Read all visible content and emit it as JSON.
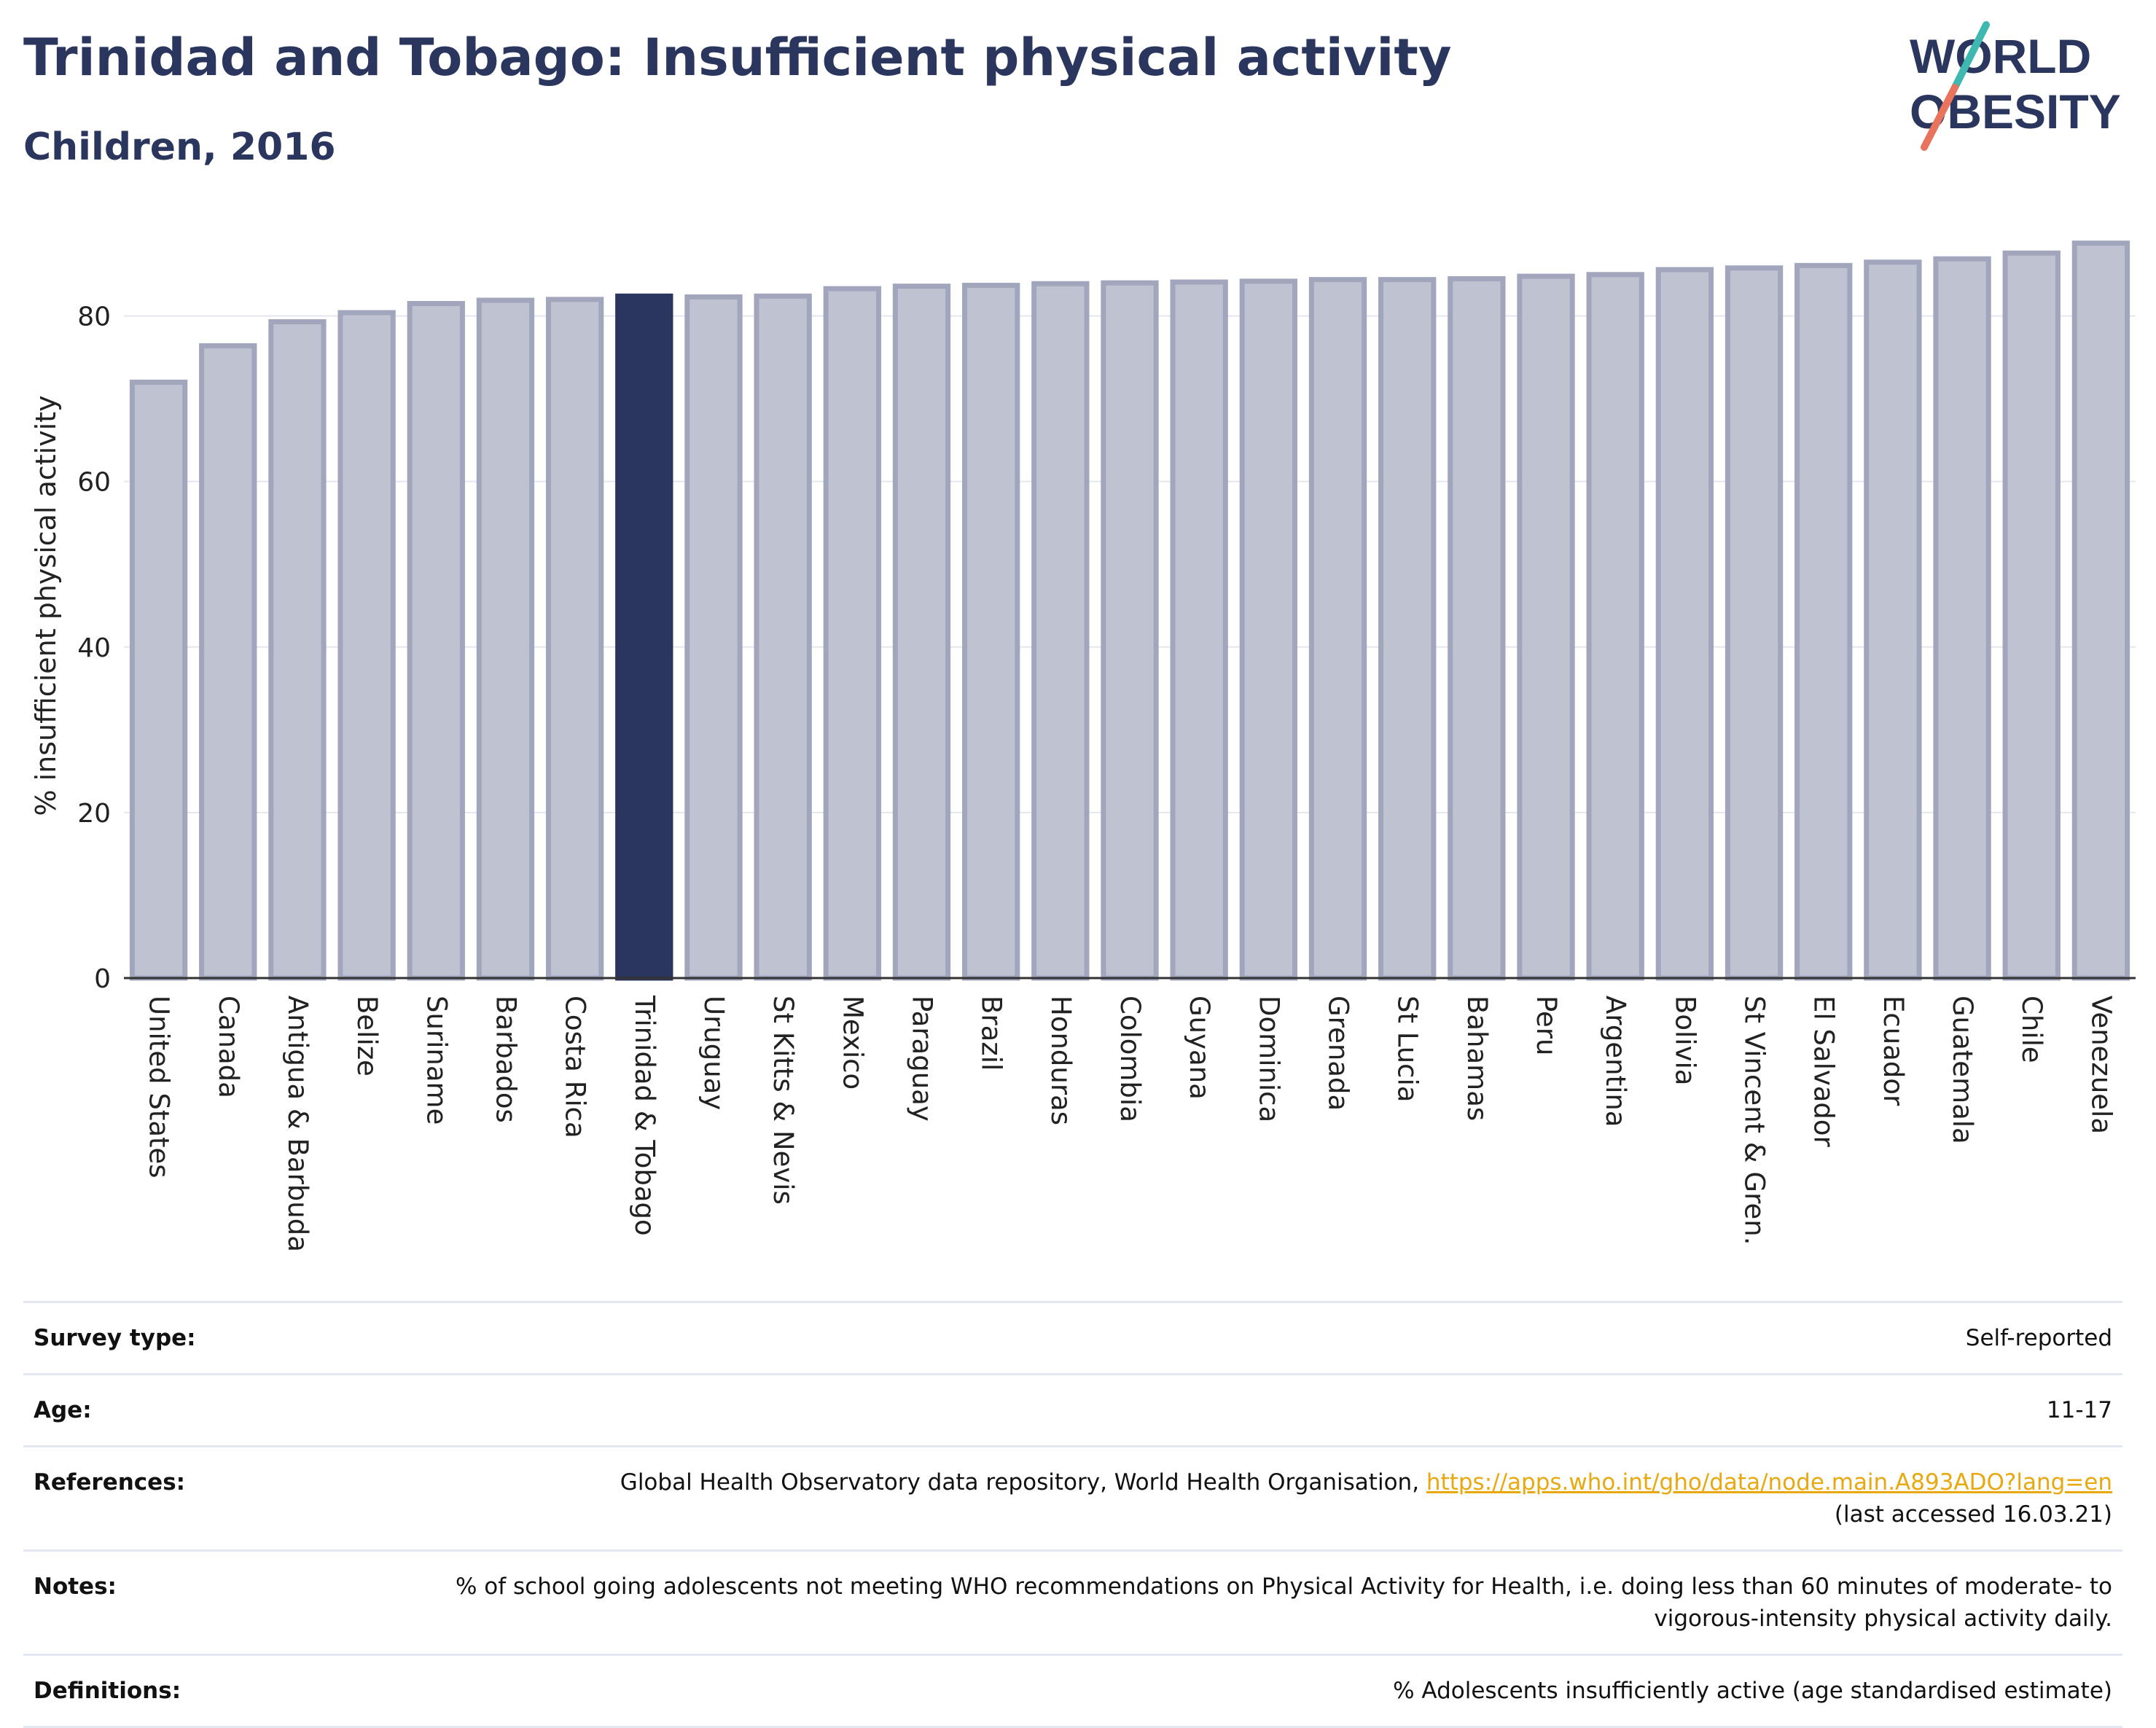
{
  "header": {
    "title": "Trinidad and Tobago: Insufficient physical activity",
    "subtitle": "Children, 2016"
  },
  "logo": {
    "line1": "WORLD",
    "line2": "OBESITY",
    "colors": {
      "text": "#2b365e",
      "slash_top": "#3fb8b0",
      "slash_bottom": "#e8745e"
    }
  },
  "colors": {
    "bar_fill": "#bfc2d0",
    "bar_stroke": "#a1a6bd",
    "highlight": "#2b365e",
    "axis": "#333333",
    "grid": "#e6e6ee"
  },
  "chart_data": {
    "type": "bar",
    "ylabel": "% insufficient physical activity",
    "xlabel": "",
    "ylim": [
      0,
      90
    ],
    "yticks": [
      0,
      20,
      40,
      60,
      80
    ],
    "grid": true,
    "highlight": "Trinidad & Tobago",
    "categories": [
      "United States",
      "Canada",
      "Antigua & Barbuda",
      "Belize",
      "Suriname",
      "Barbados",
      "Costa Rica",
      "Trinidad & Tobago",
      "Uruguay",
      "St Kitts & Nevis",
      "Mexico",
      "Paraguay",
      "Brazil",
      "Honduras",
      "Colombia",
      "Guyana",
      "Dominica",
      "Grenada",
      "St Lucia",
      "Bahamas",
      "Peru",
      "Argentina",
      "Bolivia",
      "St Vincent & Gren.",
      "El Salvador",
      "Ecuador",
      "Guatemala",
      "Chile",
      "Venezuela"
    ],
    "values": [
      72.0,
      76.4,
      79.3,
      80.4,
      81.5,
      81.9,
      82.0,
      82.4,
      82.3,
      82.4,
      83.3,
      83.6,
      83.7,
      83.9,
      84.0,
      84.1,
      84.2,
      84.4,
      84.4,
      84.5,
      84.8,
      85.0,
      85.6,
      85.8,
      86.1,
      86.5,
      86.9,
      87.6,
      88.8
    ]
  },
  "meta": [
    {
      "label": "Survey type:",
      "value": "Self-reported"
    },
    {
      "label": "Age:",
      "value": "11-17"
    },
    {
      "label": "References:",
      "value": "Global Health Observatory data repository, World Health Organisation, ",
      "link": "https://apps.who.int/gho/data/node.main.A893ADO?lang=en",
      "value2": "(last accessed 16.03.21)"
    },
    {
      "label": "Notes:",
      "value": "% of school going adolescents not meeting WHO recommendations on Physical Activity for Health, i.e. doing less than 60 minutes of moderate- to vigorous-intensity physical activity daily."
    },
    {
      "label": "Definitions:",
      "value": "% Adolescents insufficiently active (age standardised estimate)"
    }
  ]
}
